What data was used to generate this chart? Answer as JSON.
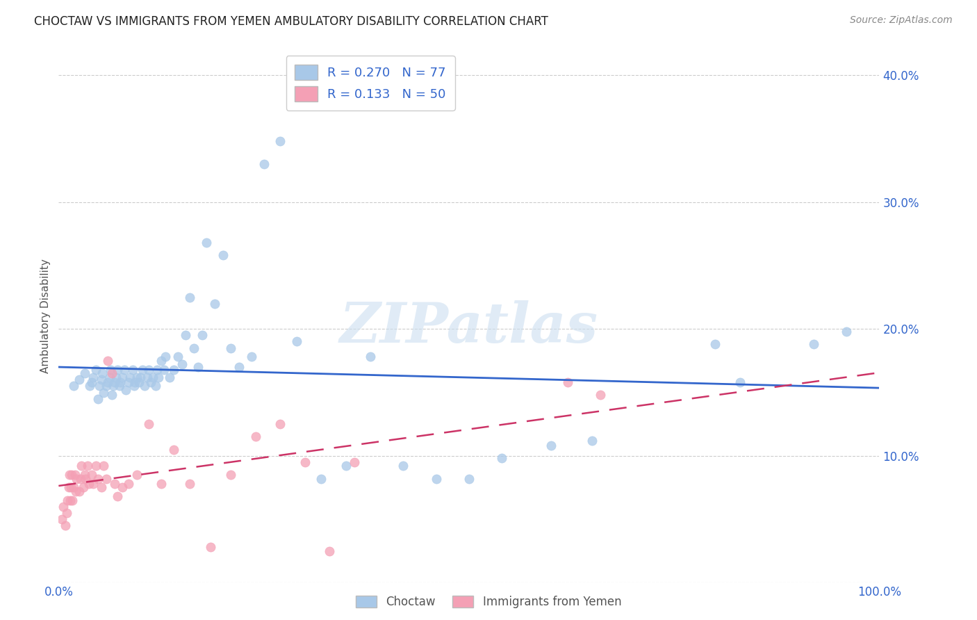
{
  "title": "CHOCTAW VS IMMIGRANTS FROM YEMEN AMBULATORY DISABILITY CORRELATION CHART",
  "source": "Source: ZipAtlas.com",
  "ylabel": "Ambulatory Disability",
  "xlim": [
    0.0,
    1.0
  ],
  "ylim": [
    0.0,
    0.42
  ],
  "xticks": [
    0.0,
    0.2,
    0.4,
    0.6,
    0.8,
    1.0
  ],
  "xticklabels": [
    "0.0%",
    "",
    "",
    "",
    "",
    "100.0%"
  ],
  "yticks": [
    0.0,
    0.1,
    0.2,
    0.3,
    0.4
  ],
  "yticklabels": [
    "",
    "10.0%",
    "20.0%",
    "30.0%",
    "40.0%"
  ],
  "watermark_text": "ZIPatlas",
  "choctaw_color": "#a8c8e8",
  "choctaw_edge_color": "#a8c8e8",
  "choctaw_line_color": "#3366cc",
  "yemen_color": "#f4a0b5",
  "yemen_edge_color": "#f4a0b5",
  "yemen_line_color": "#cc3366",
  "choctaw_label": "Choctaw",
  "yemen_label": "Immigrants from Yemen",
  "choctaw_R": 0.27,
  "choctaw_N": 77,
  "yemen_R": 0.133,
  "yemen_N": 50,
  "choctaw_x": [
    0.018,
    0.025,
    0.032,
    0.038,
    0.04,
    0.042,
    0.045,
    0.048,
    0.05,
    0.052,
    0.053,
    0.055,
    0.058,
    0.06,
    0.062,
    0.063,
    0.065,
    0.067,
    0.068,
    0.07,
    0.072,
    0.074,
    0.075,
    0.078,
    0.08,
    0.082,
    0.085,
    0.087,
    0.09,
    0.092,
    0.093,
    0.095,
    0.098,
    0.1,
    0.102,
    0.105,
    0.108,
    0.11,
    0.112,
    0.115,
    0.118,
    0.12,
    0.122,
    0.125,
    0.128,
    0.13,
    0.135,
    0.14,
    0.145,
    0.15,
    0.155,
    0.16,
    0.165,
    0.17,
    0.175,
    0.18,
    0.19,
    0.2,
    0.21,
    0.22,
    0.235,
    0.25,
    0.27,
    0.29,
    0.32,
    0.35,
    0.38,
    0.42,
    0.46,
    0.5,
    0.54,
    0.6,
    0.65,
    0.8,
    0.83,
    0.92,
    0.96
  ],
  "choctaw_y": [
    0.155,
    0.16,
    0.165,
    0.155,
    0.158,
    0.162,
    0.168,
    0.145,
    0.155,
    0.16,
    0.165,
    0.15,
    0.155,
    0.158,
    0.162,
    0.168,
    0.148,
    0.155,
    0.158,
    0.162,
    0.168,
    0.155,
    0.158,
    0.162,
    0.168,
    0.152,
    0.158,
    0.162,
    0.168,
    0.155,
    0.158,
    0.162,
    0.158,
    0.162,
    0.168,
    0.155,
    0.162,
    0.168,
    0.158,
    0.162,
    0.155,
    0.168,
    0.162,
    0.175,
    0.168,
    0.178,
    0.162,
    0.168,
    0.178,
    0.172,
    0.195,
    0.225,
    0.185,
    0.17,
    0.195,
    0.268,
    0.22,
    0.258,
    0.185,
    0.17,
    0.178,
    0.33,
    0.348,
    0.19,
    0.082,
    0.092,
    0.178,
    0.092,
    0.082,
    0.082,
    0.098,
    0.108,
    0.112,
    0.188,
    0.158,
    0.188,
    0.198
  ],
  "yemen_x": [
    0.004,
    0.006,
    0.008,
    0.01,
    0.011,
    0.012,
    0.013,
    0.014,
    0.015,
    0.016,
    0.017,
    0.018,
    0.02,
    0.021,
    0.022,
    0.025,
    0.027,
    0.028,
    0.03,
    0.032,
    0.033,
    0.035,
    0.037,
    0.04,
    0.042,
    0.045,
    0.048,
    0.052,
    0.055,
    0.058,
    0.06,
    0.065,
    0.068,
    0.072,
    0.078,
    0.085,
    0.095,
    0.11,
    0.125,
    0.14,
    0.16,
    0.185,
    0.21,
    0.24,
    0.27,
    0.3,
    0.33,
    0.36,
    0.62,
    0.66
  ],
  "yemen_y": [
    0.05,
    0.06,
    0.045,
    0.055,
    0.065,
    0.075,
    0.085,
    0.065,
    0.075,
    0.085,
    0.065,
    0.075,
    0.085,
    0.072,
    0.082,
    0.072,
    0.082,
    0.092,
    0.075,
    0.085,
    0.082,
    0.092,
    0.078,
    0.085,
    0.078,
    0.092,
    0.082,
    0.075,
    0.092,
    0.082,
    0.175,
    0.165,
    0.078,
    0.068,
    0.075,
    0.078,
    0.085,
    0.125,
    0.078,
    0.105,
    0.078,
    0.028,
    0.085,
    0.115,
    0.125,
    0.095,
    0.025,
    0.095,
    0.158,
    0.148
  ]
}
